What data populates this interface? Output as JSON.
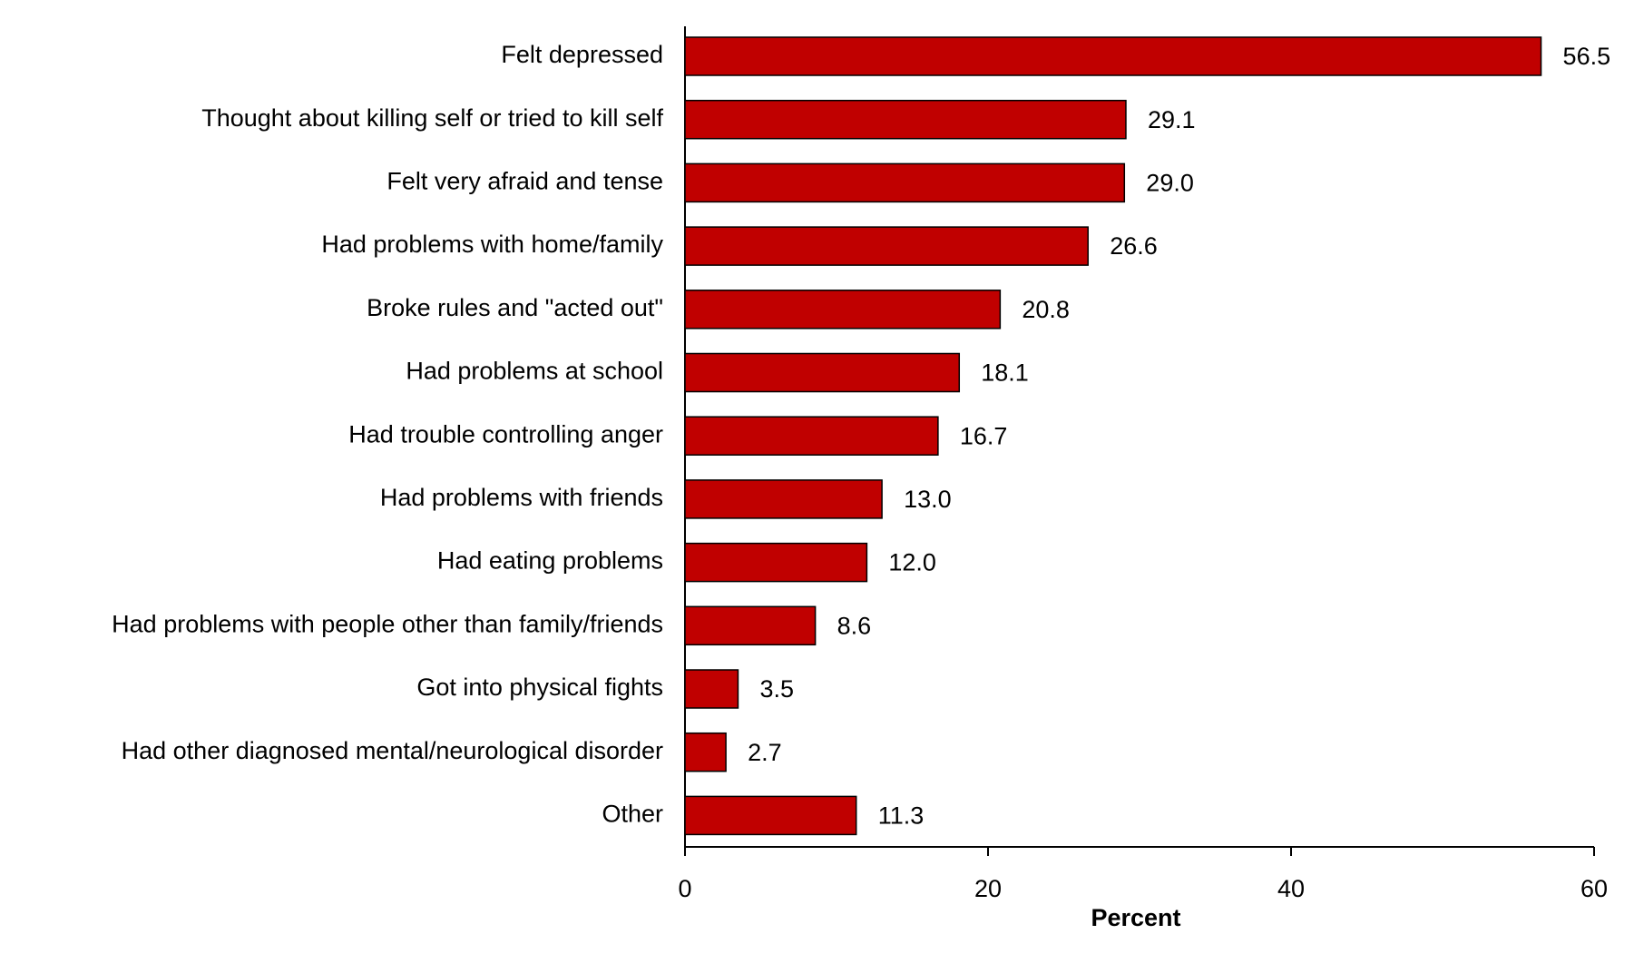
{
  "chart_data": {
    "type": "bar",
    "orientation": "horizontal",
    "x_label": "Percent",
    "categories": [
      "Felt depressed",
      "Thought about killing self or tried to kill self",
      "Felt very afraid and tense",
      "Had problems with home/family",
      "Broke rules and \"acted out\"",
      "Had problems at school",
      "Had trouble controlling anger",
      "Had problems with friends",
      "Had eating problems",
      "Had problems with people other than family/friends",
      "Got into physical fights",
      "Had other diagnosed mental/neurological disorder",
      "Other"
    ],
    "values": [
      56.5,
      29.1,
      29.0,
      26.6,
      20.8,
      18.1,
      16.7,
      13.0,
      12.0,
      8.6,
      3.5,
      2.7,
      11.3
    ],
    "value_labels": [
      "56.5",
      "29.1",
      "29.0",
      "26.6",
      "20.8",
      "18.1",
      "16.7",
      "13.0",
      "12.0",
      "8.6",
      "3.5",
      "2.7",
      "11.3"
    ],
    "color": "#c00000",
    "xlim": [
      0,
      60
    ],
    "xticks": [
      0,
      20,
      40,
      60
    ],
    "grid": false
  }
}
